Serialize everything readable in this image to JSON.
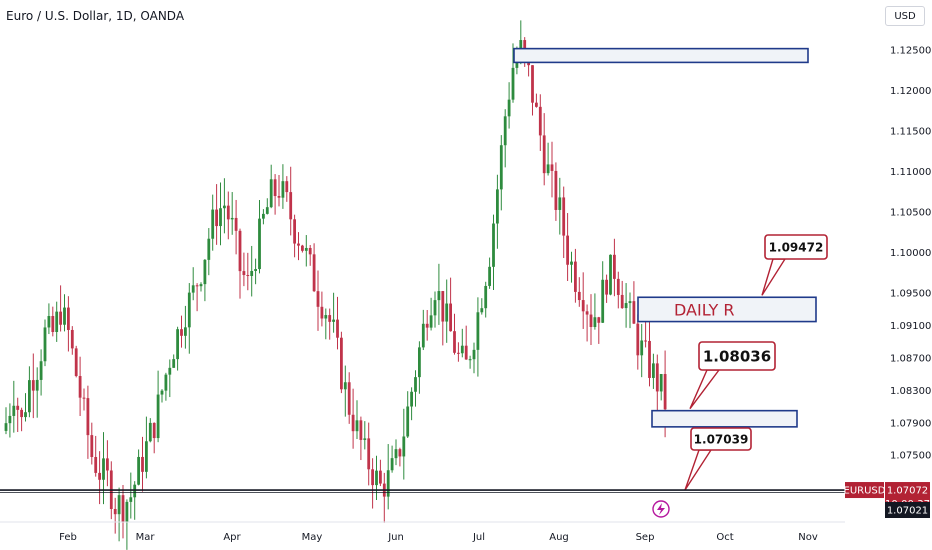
{
  "header": {
    "title": "Euro / U.S. Dollar, 1D, OANDA",
    "currency_button": "USD"
  },
  "colors": {
    "up": "#2e8b3e",
    "down": "#c0334a",
    "zone_border": "#1f3a8a",
    "zone_fill": "#f0f3f8",
    "callout_border": "#b22234",
    "price_tag": "#b22234",
    "dark_tag": "#131722"
  },
  "chart_data": {
    "type": "candlestick",
    "ylim": [
      1.067,
      1.1275
    ],
    "y_ticks": [
      "1.12500",
      "1.12000",
      "1.11500",
      "1.11000",
      "1.10500",
      "1.10000",
      "1.09500",
      "1.09100",
      "1.08700",
      "1.08300",
      "1.07900",
      "1.07500"
    ],
    "x_ticks": [
      "Feb",
      "Mar",
      "Apr",
      "May",
      "Jun",
      "Jul",
      "Aug",
      "Sep",
      "Oct",
      "Nov"
    ],
    "series": [
      {
        "anchors": [
          1.079,
          1.083,
          1.079,
          1.084,
          1.086,
          1.09,
          1.09,
          1.093,
          1.09,
          1.085,
          1.08,
          1.075,
          1.073,
          1.072,
          1.069,
          1.069,
          1.07,
          1.073,
          1.076,
          1.079,
          1.083,
          1.087,
          1.09,
          1.093,
          1.095,
          1.098,
          1.102,
          1.105,
          1.106,
          1.103,
          1.098,
          1.096,
          1.1,
          1.104,
          1.107,
          1.108,
          1.106,
          1.103,
          1.101,
          1.098,
          1.095,
          1.093,
          1.09,
          1.085,
          1.081,
          1.078,
          1.075,
          1.073,
          1.071,
          1.072,
          1.074,
          1.078,
          1.083,
          1.088,
          1.093,
          1.096,
          1.093,
          1.09,
          1.087,
          1.086,
          1.09,
          1.095,
          1.1,
          1.108,
          1.117,
          1.123,
          1.125,
          1.122,
          1.117,
          1.112,
          1.108,
          1.105,
          1.1,
          1.097,
          1.095,
          1.092,
          1.093,
          1.097,
          1.098,
          1.095,
          1.092,
          1.089,
          1.087,
          1.085,
          1.083,
          1.08,
          1.079,
          1.083,
          1.087,
          1.093,
          1.086,
          1.08,
          1.077,
          1.074,
          1.071,
          1.0707
        ]
      }
    ],
    "zones": [
      {
        "from": 1.1235,
        "to": 1.1252
      },
      {
        "label": "DAILY R",
        "from": 1.0915,
        "to": 1.0945
      },
      {
        "from": 1.0785,
        "to": 1.0805
      }
    ],
    "callouts": [
      "1.09472",
      "1.08036",
      "1.07039"
    ],
    "current_price": 1.0707,
    "symbol_tag": "EURUSD",
    "price_tag_value": "1.07072",
    "countdown": "10:00:37",
    "crosshair_price_value": 1.07021,
    "crosshair_price": "1.07021"
  }
}
